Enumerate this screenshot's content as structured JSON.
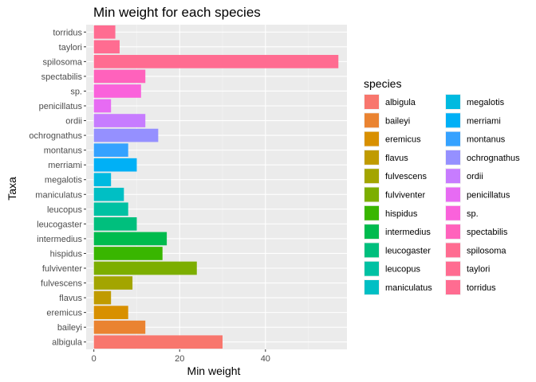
{
  "chart_data": {
    "type": "bar",
    "orientation": "horizontal",
    "title": "Min weight for each species",
    "xlabel": "Min weight",
    "ylabel": "Taxa",
    "xlim": [
      -1.8,
      59
    ],
    "xticks": [
      0,
      20,
      40
    ],
    "grid": true,
    "legend": {
      "title": "species",
      "position": "right",
      "columns": 2
    },
    "categories": [
      "albigula",
      "baileyi",
      "eremicus",
      "flavus",
      "fulvescens",
      "fulviventer",
      "hispidus",
      "intermedius",
      "leucogaster",
      "leucopus",
      "maniculatus",
      "megalotis",
      "merriami",
      "montanus",
      "ochrognathus",
      "ordii",
      "penicillatus",
      "sp.",
      "spectabilis",
      "spilosoma",
      "taylori",
      "torridus"
    ],
    "values": [
      30,
      12,
      8,
      4,
      9,
      24,
      16,
      17,
      10,
      8,
      7,
      4,
      10,
      8,
      15,
      12,
      4,
      11,
      12,
      57,
      6,
      5
    ],
    "colors": [
      "#F8766D",
      "#EA8331",
      "#D89000",
      "#C09B00",
      "#A3A500",
      "#7CAE00",
      "#39B600",
      "#00BB4E",
      "#00BF7D",
      "#00C1A3",
      "#00BFC4",
      "#00BAE0",
      "#00B0F6",
      "#35A2FF",
      "#9590FF",
      "#C77CFF",
      "#E76BF3",
      "#FA62DB",
      "#FF62BC",
      "#FF6C91",
      "#FF6C91",
      "#FF6C91"
    ]
  }
}
